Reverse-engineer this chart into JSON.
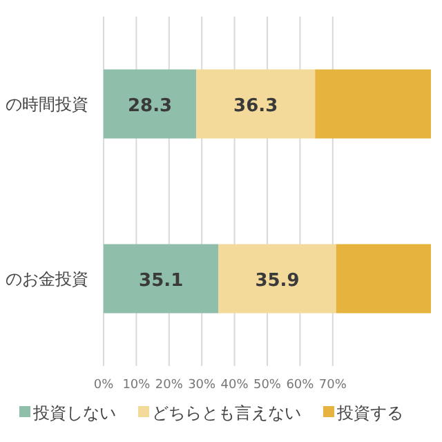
{
  "chart_data": {
    "type": "bar",
    "orientation": "horizontal",
    "stacked": true,
    "categories": [
      "の時間投資",
      "のお金投資"
    ],
    "series": [
      {
        "name": "投資しない",
        "color": "#8fbfaa",
        "values": [
          28.3,
          35.1
        ],
        "value_labels": [
          "28.3",
          "35.1"
        ]
      },
      {
        "name": "どちらとも言えない",
        "color": "#f3d99a",
        "values": [
          36.3,
          35.9
        ],
        "value_labels": [
          "36.3",
          "35.9"
        ]
      },
      {
        "name": "投資する",
        "color": "#e6b33f",
        "values": [
          35.4,
          29.0
        ],
        "value_labels": [
          null,
          null
        ]
      }
    ],
    "xlim": [
      0,
      100
    ],
    "xticks": [
      {
        "value": 0,
        "label": "0%"
      },
      {
        "value": 10,
        "label": "10%"
      },
      {
        "value": 20,
        "label": "20%"
      },
      {
        "value": 30,
        "label": "30%"
      },
      {
        "value": 40,
        "label": "40%"
      },
      {
        "value": 50,
        "label": "50%"
      },
      {
        "value": 60,
        "label": "60%"
      },
      {
        "value": 70,
        "label": "70%"
      }
    ],
    "grid": "x",
    "legend": "bottom"
  }
}
